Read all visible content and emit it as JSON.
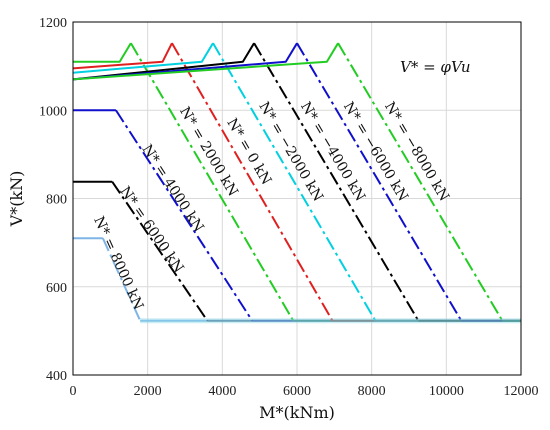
{
  "chart_data": {
    "type": "line",
    "title": "",
    "xlabel": "M*(kNm)",
    "ylabel": "V*(kN)",
    "xlim": [
      0,
      12000
    ],
    "ylim": [
      400,
      1200
    ],
    "x_ticks": [
      0,
      2000,
      4000,
      6000,
      8000,
      10000,
      12000
    ],
    "y_ticks": [
      400,
      600,
      800,
      1000,
      1200
    ],
    "grid": true,
    "annotation": "V* = φVu",
    "floor": 523,
    "series": [
      {
        "name": "N* = 8000 kN",
        "color": "#7fb5e6",
        "points": [
          [
            0,
            710
          ],
          [
            800,
            710
          ],
          [
            1800,
            523
          ],
          [
            12000,
            523
          ]
        ]
      },
      {
        "name": "N* = 6000 kN",
        "color": "#000000",
        "points": [
          [
            0,
            838
          ],
          [
            1050,
            838
          ],
          [
            3600,
            523
          ],
          [
            12000,
            523
          ]
        ]
      },
      {
        "name": "N* = 4000 kN",
        "color": "#1010cc",
        "points": [
          [
            0,
            1000
          ],
          [
            1150,
            1000
          ],
          [
            4800,
            523
          ],
          [
            12000,
            523
          ]
        ]
      },
      {
        "name": "N* = 2000 kN",
        "color": "#22cc22",
        "points": [
          [
            0,
            1110
          ],
          [
            1250,
            1110
          ],
          [
            1550,
            1152
          ],
          [
            5900,
            523
          ],
          [
            12000,
            523
          ]
        ]
      },
      {
        "name": "N* = 0 kN",
        "color": "#e02020",
        "points": [
          [
            0,
            1095
          ],
          [
            2400,
            1110
          ],
          [
            2650,
            1152
          ],
          [
            6950,
            523
          ],
          [
            12000,
            523
          ]
        ]
      },
      {
        "name": "N* = −2000 kN",
        "color": "#00d0e0",
        "points": [
          [
            0,
            1085
          ],
          [
            3450,
            1110
          ],
          [
            3750,
            1152
          ],
          [
            8100,
            523
          ],
          [
            12000,
            523
          ]
        ]
      },
      {
        "name": "N* = −4000 kN",
        "color": "#000000",
        "points": [
          [
            0,
            1070
          ],
          [
            4550,
            1110
          ],
          [
            4850,
            1152
          ],
          [
            9250,
            523
          ],
          [
            12000,
            523
          ]
        ]
      },
      {
        "name": "N* = −6000 kN",
        "color": "#1010cc",
        "points": [
          [
            0,
            1070
          ],
          [
            5700,
            1110
          ],
          [
            6000,
            1152
          ],
          [
            10400,
            523
          ],
          [
            12000,
            523
          ]
        ]
      },
      {
        "name": "N* = −8000 kN",
        "color": "#22cc22",
        "points": [
          [
            0,
            1070
          ],
          [
            6800,
            1110
          ],
          [
            7100,
            1152
          ],
          [
            11500,
            523
          ],
          [
            12000,
            523
          ]
        ]
      }
    ]
  }
}
